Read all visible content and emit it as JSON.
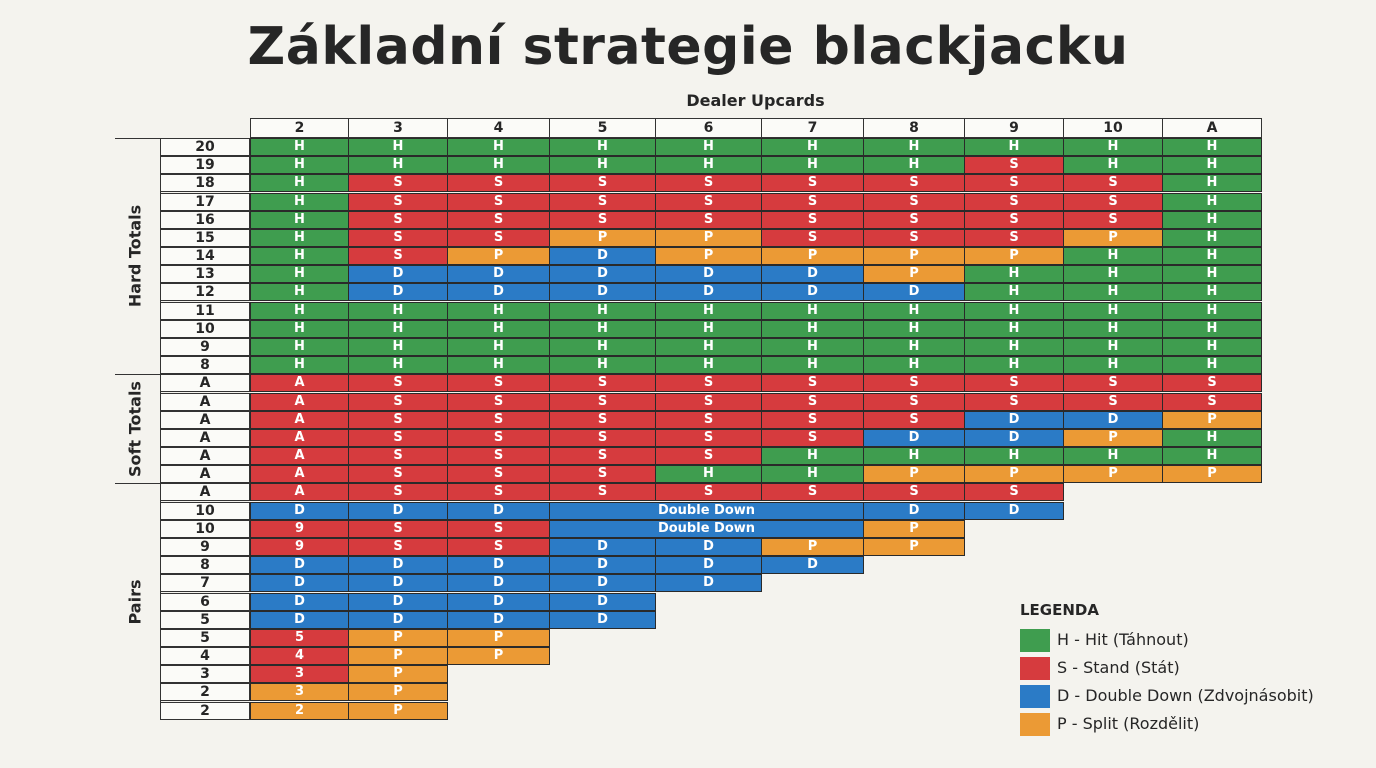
{
  "title": "Základní strategie blackjacku",
  "subtitle": "Dealer Upcards",
  "colors": {
    "H": "#3f9d4f",
    "S": "#d63b3e",
    "D": "#2b7bc6",
    "P": "#eb9a35"
  },
  "dealer_upcards": [
    "2",
    "3",
    "4",
    "5",
    "6",
    "7",
    "8",
    "9",
    "10",
    "A"
  ],
  "sections": [
    {
      "label": "Hard Totals",
      "rows": [
        0,
        12
      ]
    },
    {
      "label": "Soft Totals",
      "rows": [
        13,
        18
      ]
    },
    {
      "label": "Pairs",
      "rows": [
        19,
        31
      ]
    }
  ],
  "rows": [
    {
      "label": "20",
      "cells": [
        {
          "t": "H",
          "c": "H"
        },
        {
          "t": "H",
          "c": "H"
        },
        {
          "t": "H",
          "c": "H"
        },
        {
          "t": "H",
          "c": "H"
        },
        {
          "t": "H",
          "c": "H"
        },
        {
          "t": "H",
          "c": "H"
        },
        {
          "t": "H",
          "c": "H"
        },
        {
          "t": "H",
          "c": "H"
        },
        {
          "t": "H",
          "c": "H"
        },
        {
          "t": "H",
          "c": "H"
        }
      ]
    },
    {
      "label": "19",
      "cells": [
        {
          "t": "H",
          "c": "H"
        },
        {
          "t": "H",
          "c": "H"
        },
        {
          "t": "H",
          "c": "H"
        },
        {
          "t": "H",
          "c": "H"
        },
        {
          "t": "H",
          "c": "H"
        },
        {
          "t": "H",
          "c": "H"
        },
        {
          "t": "H",
          "c": "H"
        },
        {
          "t": "S",
          "c": "S"
        },
        {
          "t": "H",
          "c": "H"
        },
        {
          "t": "H",
          "c": "H"
        }
      ]
    },
    {
      "label": "18",
      "cells": [
        {
          "t": "H",
          "c": "H"
        },
        {
          "t": "S",
          "c": "S"
        },
        {
          "t": "S",
          "c": "S"
        },
        {
          "t": "S",
          "c": "S"
        },
        {
          "t": "S",
          "c": "S"
        },
        {
          "t": "S",
          "c": "S"
        },
        {
          "t": "S",
          "c": "S"
        },
        {
          "t": "S",
          "c": "S"
        },
        {
          "t": "S",
          "c": "S"
        },
        {
          "t": "H",
          "c": "H"
        }
      ]
    },
    {
      "label": "17",
      "cells": [
        {
          "t": "H",
          "c": "H"
        },
        {
          "t": "S",
          "c": "S"
        },
        {
          "t": "S",
          "c": "S"
        },
        {
          "t": "S",
          "c": "S"
        },
        {
          "t": "S",
          "c": "S"
        },
        {
          "t": "S",
          "c": "S"
        },
        {
          "t": "S",
          "c": "S"
        },
        {
          "t": "S",
          "c": "S"
        },
        {
          "t": "S",
          "c": "S"
        },
        {
          "t": "H",
          "c": "H"
        }
      ]
    },
    {
      "label": "16",
      "cells": [
        {
          "t": "H",
          "c": "H"
        },
        {
          "t": "S",
          "c": "S"
        },
        {
          "t": "S",
          "c": "S"
        },
        {
          "t": "S",
          "c": "S"
        },
        {
          "t": "S",
          "c": "S"
        },
        {
          "t": "S",
          "c": "S"
        },
        {
          "t": "S",
          "c": "S"
        },
        {
          "t": "S",
          "c": "S"
        },
        {
          "t": "S",
          "c": "S"
        },
        {
          "t": "H",
          "c": "H"
        }
      ]
    },
    {
      "label": "15",
      "cells": [
        {
          "t": "H",
          "c": "H"
        },
        {
          "t": "S",
          "c": "S"
        },
        {
          "t": "S",
          "c": "S"
        },
        {
          "t": "P",
          "c": "P"
        },
        {
          "t": "P",
          "c": "P"
        },
        {
          "t": "S",
          "c": "S"
        },
        {
          "t": "S",
          "c": "S"
        },
        {
          "t": "S",
          "c": "S"
        },
        {
          "t": "P",
          "c": "P"
        },
        {
          "t": "H",
          "c": "H"
        }
      ]
    },
    {
      "label": "14",
      "cells": [
        {
          "t": "H",
          "c": "H"
        },
        {
          "t": "S",
          "c": "S"
        },
        {
          "t": "P",
          "c": "P"
        },
        {
          "t": "D",
          "c": "D"
        },
        {
          "t": "P",
          "c": "P"
        },
        {
          "t": "P",
          "c": "P"
        },
        {
          "t": "P",
          "c": "P"
        },
        {
          "t": "P",
          "c": "P"
        },
        {
          "t": "H",
          "c": "H"
        },
        {
          "t": "H",
          "c": "H"
        }
      ]
    },
    {
      "label": "13",
      "cells": [
        {
          "t": "H",
          "c": "H"
        },
        {
          "t": "D",
          "c": "D"
        },
        {
          "t": "D",
          "c": "D"
        },
        {
          "t": "D",
          "c": "D"
        },
        {
          "t": "D",
          "c": "D"
        },
        {
          "t": "D",
          "c": "D"
        },
        {
          "t": "P",
          "c": "P"
        },
        {
          "t": "H",
          "c": "H"
        },
        {
          "t": "H",
          "c": "H"
        },
        {
          "t": "H",
          "c": "H"
        }
      ]
    },
    {
      "label": "12",
      "cells": [
        {
          "t": "H",
          "c": "H"
        },
        {
          "t": "D",
          "c": "D"
        },
        {
          "t": "D",
          "c": "D"
        },
        {
          "t": "D",
          "c": "D"
        },
        {
          "t": "D",
          "c": "D"
        },
        {
          "t": "D",
          "c": "D"
        },
        {
          "t": "D",
          "c": "D"
        },
        {
          "t": "H",
          "c": "H"
        },
        {
          "t": "H",
          "c": "H"
        },
        {
          "t": "H",
          "c": "H"
        }
      ]
    },
    {
      "label": "11",
      "cells": [
        {
          "t": "H",
          "c": "H"
        },
        {
          "t": "H",
          "c": "H"
        },
        {
          "t": "H",
          "c": "H"
        },
        {
          "t": "H",
          "c": "H"
        },
        {
          "t": "H",
          "c": "H"
        },
        {
          "t": "H",
          "c": "H"
        },
        {
          "t": "H",
          "c": "H"
        },
        {
          "t": "H",
          "c": "H"
        },
        {
          "t": "H",
          "c": "H"
        },
        {
          "t": "H",
          "c": "H"
        }
      ]
    },
    {
      "label": "10",
      "cells": [
        {
          "t": "H",
          "c": "H"
        },
        {
          "t": "H",
          "c": "H"
        },
        {
          "t": "H",
          "c": "H"
        },
        {
          "t": "H",
          "c": "H"
        },
        {
          "t": "H",
          "c": "H"
        },
        {
          "t": "H",
          "c": "H"
        },
        {
          "t": "H",
          "c": "H"
        },
        {
          "t": "H",
          "c": "H"
        },
        {
          "t": "H",
          "c": "H"
        },
        {
          "t": "H",
          "c": "H"
        }
      ]
    },
    {
      "label": "9",
      "cells": [
        {
          "t": "H",
          "c": "H"
        },
        {
          "t": "H",
          "c": "H"
        },
        {
          "t": "H",
          "c": "H"
        },
        {
          "t": "H",
          "c": "H"
        },
        {
          "t": "H",
          "c": "H"
        },
        {
          "t": "H",
          "c": "H"
        },
        {
          "t": "H",
          "c": "H"
        },
        {
          "t": "H",
          "c": "H"
        },
        {
          "t": "H",
          "c": "H"
        },
        {
          "t": "H",
          "c": "H"
        }
      ]
    },
    {
      "label": "8",
      "cells": [
        {
          "t": "H",
          "c": "H"
        },
        {
          "t": "H",
          "c": "H"
        },
        {
          "t": "H",
          "c": "H"
        },
        {
          "t": "H",
          "c": "H"
        },
        {
          "t": "H",
          "c": "H"
        },
        {
          "t": "H",
          "c": "H"
        },
        {
          "t": "H",
          "c": "H"
        },
        {
          "t": "H",
          "c": "H"
        },
        {
          "t": "H",
          "c": "H"
        },
        {
          "t": "H",
          "c": "H"
        }
      ]
    },
    {
      "label": "A",
      "cells": [
        {
          "t": "A",
          "c": "S"
        },
        {
          "t": "S",
          "c": "S"
        },
        {
          "t": "S",
          "c": "S"
        },
        {
          "t": "S",
          "c": "S"
        },
        {
          "t": "S",
          "c": "S"
        },
        {
          "t": "S",
          "c": "S"
        },
        {
          "t": "S",
          "c": "S"
        },
        {
          "t": "S",
          "c": "S"
        },
        {
          "t": "S",
          "c": "S"
        },
        {
          "t": "S",
          "c": "S"
        }
      ]
    },
    {
      "label": "A",
      "cells": [
        {
          "t": "A",
          "c": "S"
        },
        {
          "t": "S",
          "c": "S"
        },
        {
          "t": "S",
          "c": "S"
        },
        {
          "t": "S",
          "c": "S"
        },
        {
          "t": "S",
          "c": "S"
        },
        {
          "t": "S",
          "c": "S"
        },
        {
          "t": "S",
          "c": "S"
        },
        {
          "t": "S",
          "c": "S"
        },
        {
          "t": "S",
          "c": "S"
        },
        {
          "t": "S",
          "c": "S"
        }
      ]
    },
    {
      "label": "A",
      "cells": [
        {
          "t": "A",
          "c": "S"
        },
        {
          "t": "S",
          "c": "S"
        },
        {
          "t": "S",
          "c": "S"
        },
        {
          "t": "S",
          "c": "S"
        },
        {
          "t": "S",
          "c": "S"
        },
        {
          "t": "S",
          "c": "S"
        },
        {
          "t": "S",
          "c": "S"
        },
        {
          "t": "D",
          "c": "D"
        },
        {
          "t": "D",
          "c": "D"
        },
        {
          "t": "P",
          "c": "P"
        }
      ]
    },
    {
      "label": "A",
      "cells": [
        {
          "t": "A",
          "c": "S"
        },
        {
          "t": "S",
          "c": "S"
        },
        {
          "t": "S",
          "c": "S"
        },
        {
          "t": "S",
          "c": "S"
        },
        {
          "t": "S",
          "c": "S"
        },
        {
          "t": "S",
          "c": "S"
        },
        {
          "t": "D",
          "c": "D"
        },
        {
          "t": "D",
          "c": "D"
        },
        {
          "t": "P",
          "c": "P"
        },
        {
          "t": "H",
          "c": "H"
        }
      ]
    },
    {
      "label": "A",
      "cells": [
        {
          "t": "A",
          "c": "S"
        },
        {
          "t": "S",
          "c": "S"
        },
        {
          "t": "S",
          "c": "S"
        },
        {
          "t": "S",
          "c": "S"
        },
        {
          "t": "S",
          "c": "S"
        },
        {
          "t": "H",
          "c": "H"
        },
        {
          "t": "H",
          "c": "H"
        },
        {
          "t": "H",
          "c": "H"
        },
        {
          "t": "H",
          "c": "H"
        },
        {
          "t": "H",
          "c": "H"
        }
      ]
    },
    {
      "label": "A",
      "cells": [
        {
          "t": "A",
          "c": "S"
        },
        {
          "t": "S",
          "c": "S"
        },
        {
          "t": "S",
          "c": "S"
        },
        {
          "t": "S",
          "c": "S"
        },
        {
          "t": "H",
          "c": "H"
        },
        {
          "t": "H",
          "c": "H"
        },
        {
          "t": "P",
          "c": "P"
        },
        {
          "t": "P",
          "c": "P"
        },
        {
          "t": "P",
          "c": "P"
        },
        {
          "t": "P",
          "c": "P"
        }
      ]
    },
    {
      "label": "A",
      "cells": [
        {
          "t": "A",
          "c": "S"
        },
        {
          "t": "S",
          "c": "S"
        },
        {
          "t": "S",
          "c": "S"
        },
        {
          "t": "S",
          "c": "S"
        },
        {
          "t": "S",
          "c": "S"
        },
        {
          "t": "S",
          "c": "S"
        },
        {
          "t": "S",
          "c": "S"
        },
        {
          "t": "S",
          "c": "S"
        }
      ]
    },
    {
      "label": "10",
      "cells": [
        {
          "t": "D",
          "c": "D"
        },
        {
          "t": "D",
          "c": "D"
        },
        {
          "t": "D",
          "c": "D"
        },
        {
          "t": "Double Down",
          "c": "D",
          "span": 3
        },
        {
          "t": "D",
          "c": "D"
        },
        {
          "t": "D",
          "c": "D"
        }
      ]
    },
    {
      "label": "10",
      "cells": [
        {
          "t": "9",
          "c": "S"
        },
        {
          "t": "S",
          "c": "S"
        },
        {
          "t": "S",
          "c": "S"
        },
        {
          "t": "Double Down",
          "c": "D",
          "span": 3
        },
        {
          "t": "P",
          "c": "P"
        }
      ]
    },
    {
      "label": "9",
      "cells": [
        {
          "t": "9",
          "c": "S"
        },
        {
          "t": "S",
          "c": "S"
        },
        {
          "t": "S",
          "c": "S"
        },
        {
          "t": "D",
          "c": "D"
        },
        {
          "t": "D",
          "c": "D"
        },
        {
          "t": "P",
          "c": "P"
        },
        {
          "t": "P",
          "c": "P"
        }
      ]
    },
    {
      "label": "8",
      "cells": [
        {
          "t": "D",
          "c": "D"
        },
        {
          "t": "D",
          "c": "D"
        },
        {
          "t": "D",
          "c": "D"
        },
        {
          "t": "D",
          "c": "D"
        },
        {
          "t": "D",
          "c": "D"
        },
        {
          "t": "D",
          "c": "D"
        }
      ]
    },
    {
      "label": "7",
      "cells": [
        {
          "t": "D",
          "c": "D"
        },
        {
          "t": "D",
          "c": "D"
        },
        {
          "t": "D",
          "c": "D"
        },
        {
          "t": "D",
          "c": "D"
        },
        {
          "t": "D",
          "c": "D"
        }
      ]
    },
    {
      "label": "6",
      "cells": [
        {
          "t": "D",
          "c": "D"
        },
        {
          "t": "D",
          "c": "D"
        },
        {
          "t": "D",
          "c": "D"
        },
        {
          "t": "D",
          "c": "D"
        }
      ]
    },
    {
      "label": "5",
      "cells": [
        {
          "t": "D",
          "c": "D"
        },
        {
          "t": "D",
          "c": "D"
        },
        {
          "t": "D",
          "c": "D"
        },
        {
          "t": "D",
          "c": "D"
        }
      ]
    },
    {
      "label": "5",
      "cells": [
        {
          "t": "5",
          "c": "S"
        },
        {
          "t": "P",
          "c": "P"
        },
        {
          "t": "P",
          "c": "P"
        }
      ]
    },
    {
      "label": "4",
      "cells": [
        {
          "t": "4",
          "c": "S"
        },
        {
          "t": "P",
          "c": "P"
        },
        {
          "t": "P",
          "c": "P"
        }
      ]
    },
    {
      "label": "3",
      "cells": [
        {
          "t": "3",
          "c": "S"
        },
        {
          "t": "P",
          "c": "P"
        }
      ]
    },
    {
      "label": "2",
      "cells": [
        {
          "t": "3",
          "c": "P"
        },
        {
          "t": "P",
          "c": "P"
        }
      ]
    },
    {
      "label": "2",
      "cells": [
        {
          "t": "2",
          "c": "P"
        },
        {
          "t": "P",
          "c": "P"
        }
      ]
    }
  ],
  "legend": {
    "title": "LEGENDA",
    "items": [
      {
        "code": "H",
        "label": "H - Hit (Táhnout)"
      },
      {
        "code": "S",
        "label": "S - Stand (Stát)"
      },
      {
        "code": "D",
        "label": "D - Double Down (Zdvojnásobit)"
      },
      {
        "code": "P",
        "label": "P - Split (Rozdělit)"
      }
    ]
  }
}
